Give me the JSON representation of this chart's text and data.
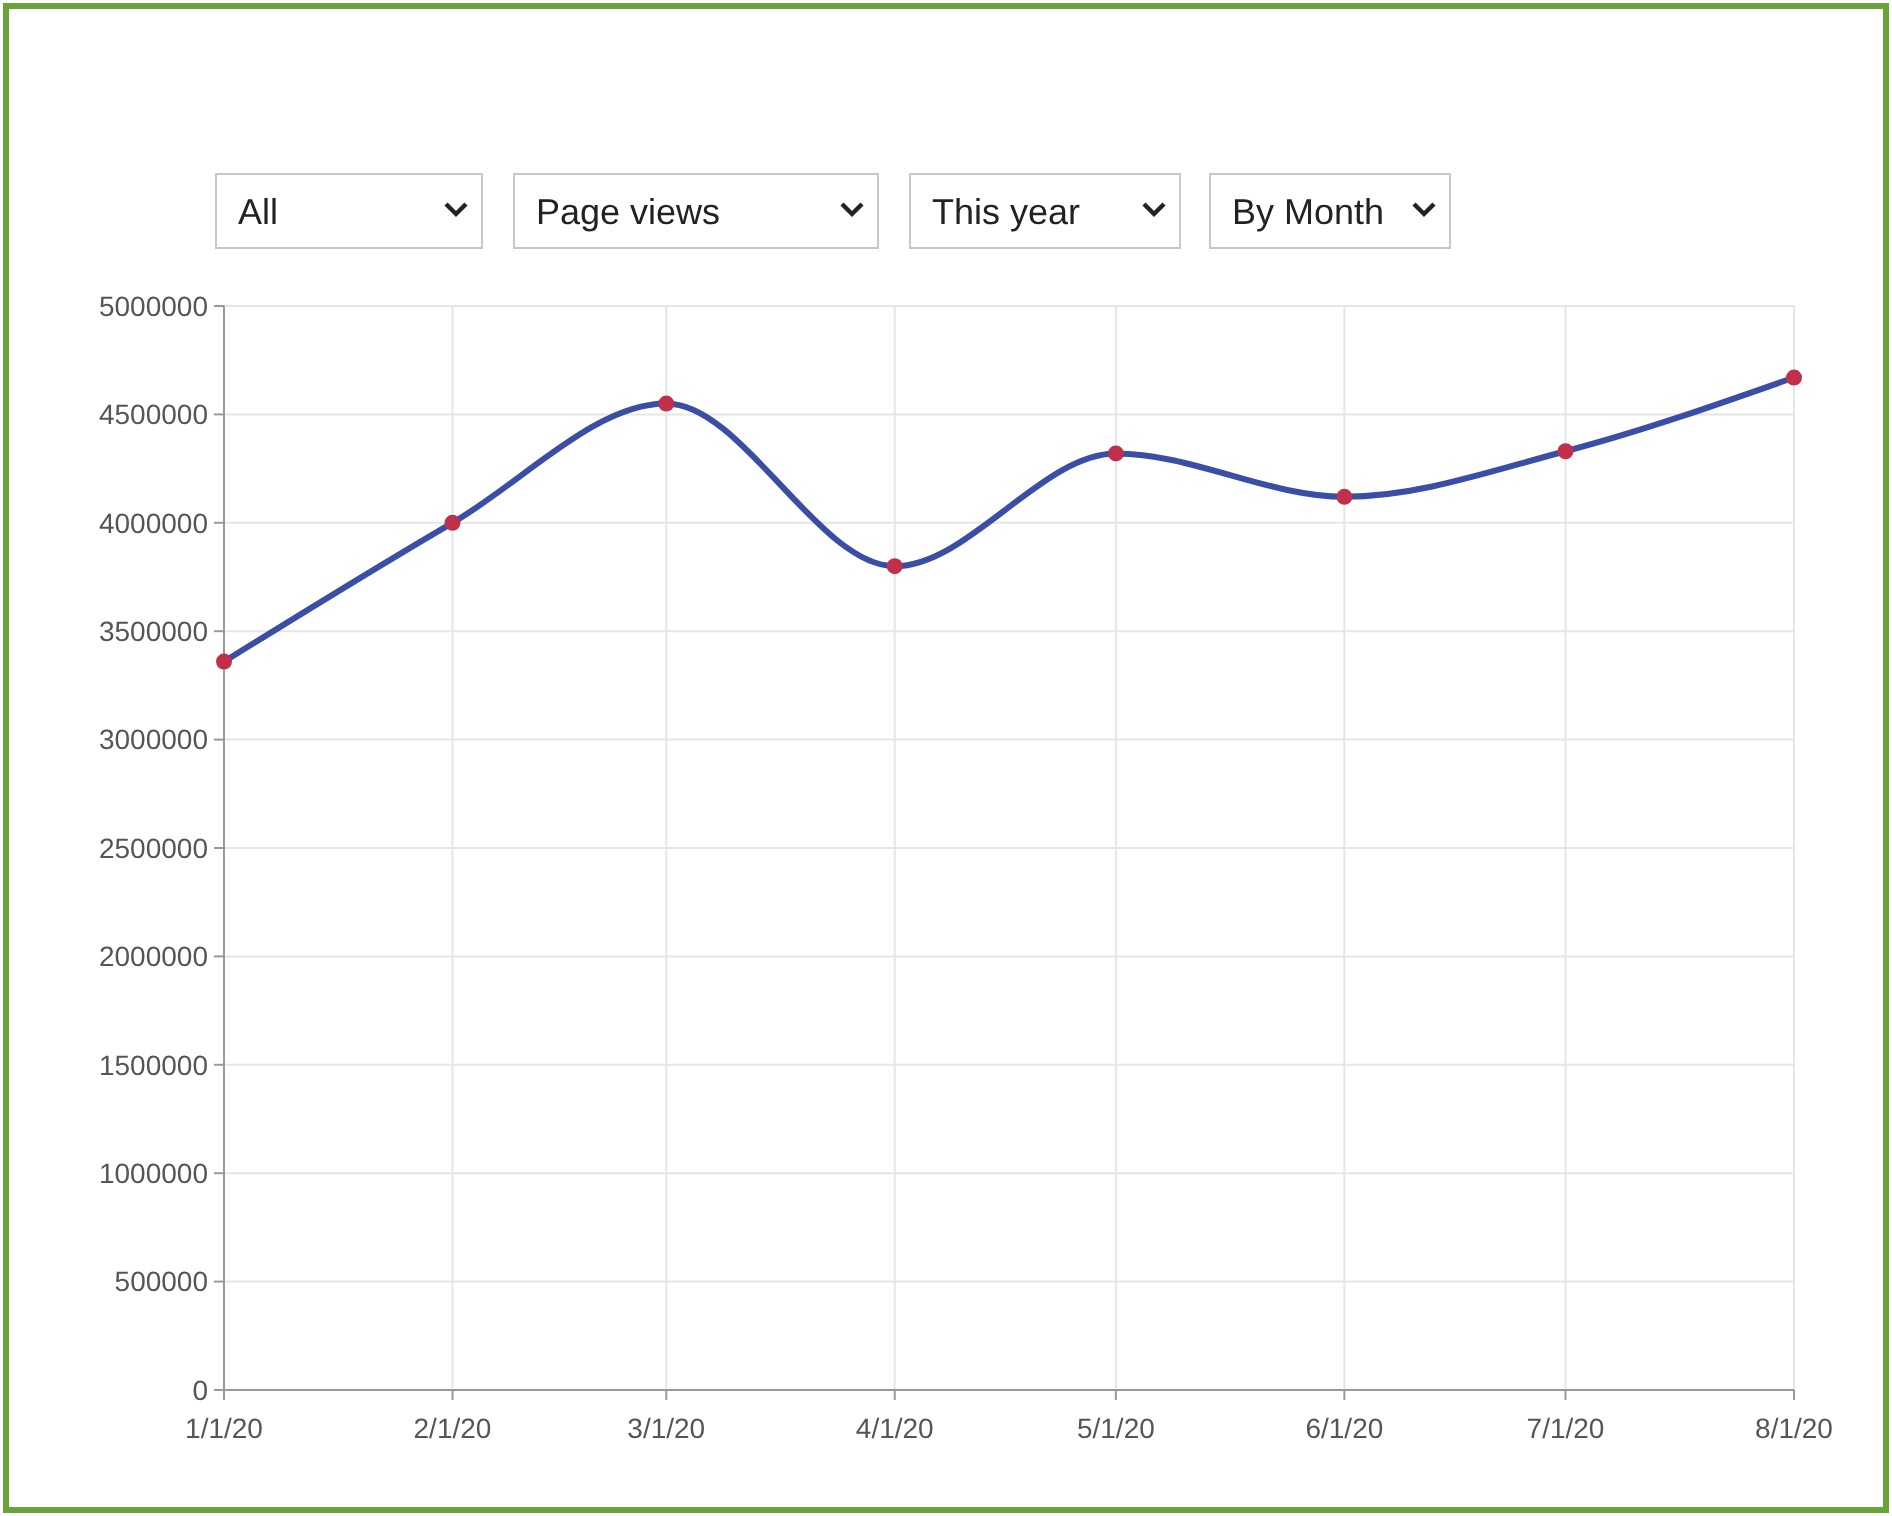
{
  "chart_data": {
    "type": "line",
    "annotations": [
      "All",
      "Page views",
      "This year",
      "By Month"
    ],
    "x": [
      "2020-01-01",
      "2020-02-01",
      "2020-03-01",
      "2020-04-01",
      "2020-05-01",
      "2020-06-01",
      "2020-07-01",
      "2020-08-01"
    ],
    "series": [
      {
        "color": "#3a4ea5",
        "values": [
          3360000,
          4000000,
          4550000,
          3800000,
          4320000,
          4120000,
          4330000,
          4670000
        ]
      }
    ],
    "xlim": [
      "2020-01-01",
      "2020-08-01"
    ],
    "xticks": [
      {
        "value": "2020-01-01",
        "label": "1/1/20"
      },
      {
        "value": "2020-02-01",
        "label": "2/1/20"
      },
      {
        "value": "2020-03-01",
        "label": "3/1/20"
      },
      {
        "value": "2020-04-01",
        "label": "4/1/20"
      },
      {
        "value": "2020-05-01",
        "label": "5/1/20"
      },
      {
        "value": "2020-06-01",
        "label": "6/1/20"
      },
      {
        "value": "2020-07-01",
        "label": "7/1/20"
      },
      {
        "value": "2020-08-01",
        "label": "8/1/20"
      }
    ],
    "ylim": [
      0,
      5000000
    ],
    "yticks": [
      0,
      500000,
      1000000,
      1500000,
      2000000,
      2500000,
      3000000,
      3500000,
      4000000,
      4500000,
      5000000
    ],
    "grid": true,
    "marker": "circle",
    "line_style": "solid"
  }
}
